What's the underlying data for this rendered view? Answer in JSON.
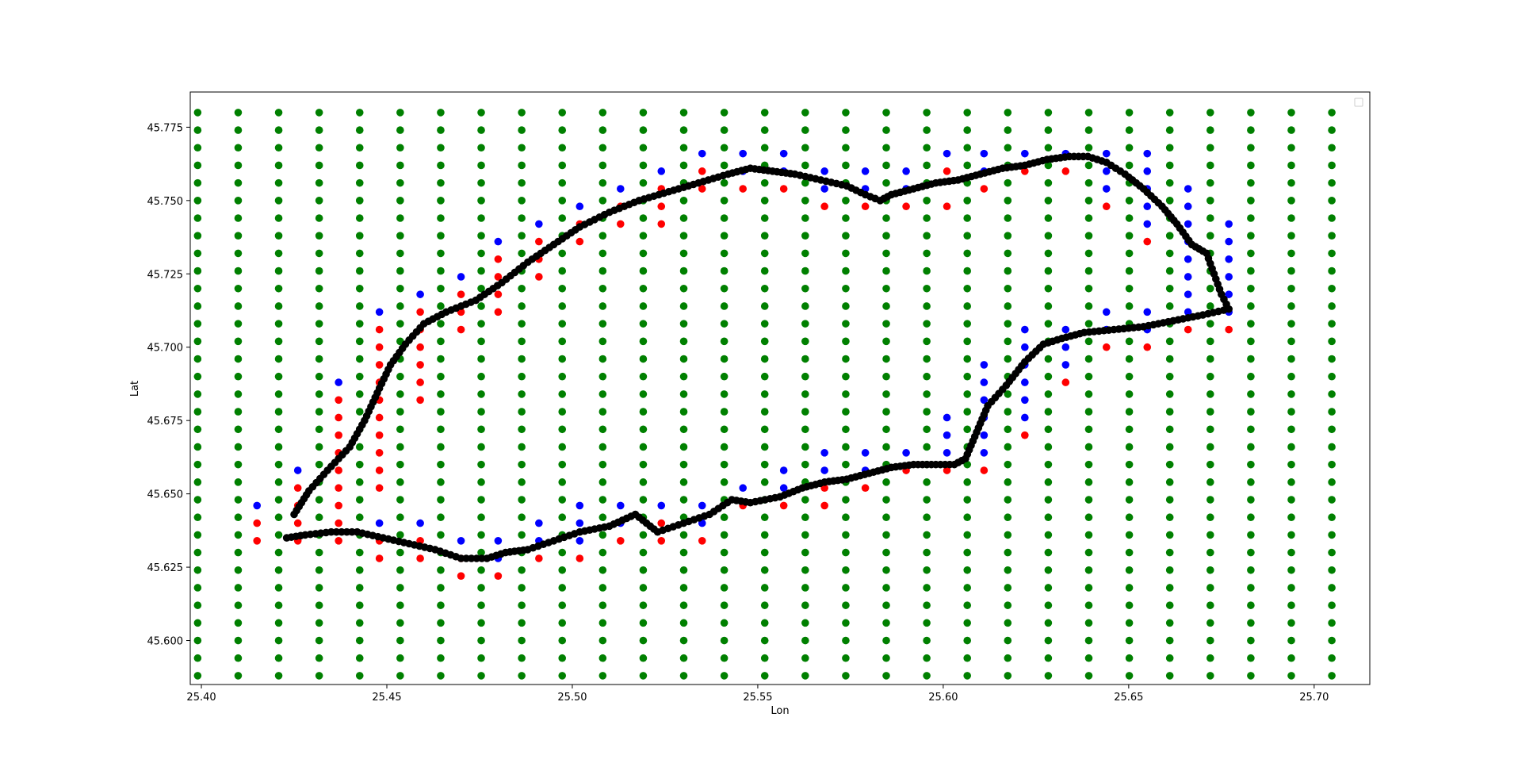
{
  "chart_data": {
    "type": "scatter",
    "title": "",
    "xlabel": "Lon",
    "ylabel": "Lat",
    "xlim": [
      25.397,
      25.715
    ],
    "ylim": [
      45.585,
      45.787
    ],
    "x_ticks": [
      25.4,
      25.45,
      25.5,
      25.55,
      25.6,
      25.65,
      25.7
    ],
    "x_tick_labels": [
      "25.40",
      "25.45",
      "25.50",
      "25.55",
      "25.60",
      "25.65",
      "25.70"
    ],
    "y_ticks": [
      45.6,
      45.625,
      45.65,
      45.675,
      45.7,
      45.725,
      45.75,
      45.775
    ],
    "y_tick_labels": [
      "45.600",
      "45.625",
      "45.650",
      "45.675",
      "45.700",
      "45.725",
      "45.750",
      "45.775"
    ],
    "grid": false,
    "legend": {
      "placement": "top-right",
      "entries": []
    },
    "colors": {
      "grid_points": "#008000",
      "inside_red": "#ff0000",
      "boundary_blue": "#0000ff",
      "track": "#000000"
    },
    "series": [
      {
        "color": "#008000",
        "grid": {
          "x_start": 25.399,
          "x_step": 0.01092,
          "x_count": 29,
          "y_start": 45.588,
          "y_step": 0.006,
          "y_count": 33
        }
      },
      {
        "color": "#ff0000",
        "points": [
          [
            25.415,
            45.64
          ],
          [
            25.415,
            45.634
          ],
          [
            25.426,
            45.652
          ],
          [
            25.426,
            45.646
          ],
          [
            25.426,
            45.64
          ],
          [
            25.426,
            45.634
          ],
          [
            25.437,
            45.682
          ],
          [
            25.437,
            45.676
          ],
          [
            25.437,
            45.67
          ],
          [
            25.437,
            45.664
          ],
          [
            25.437,
            45.658
          ],
          [
            25.437,
            45.652
          ],
          [
            25.437,
            45.646
          ],
          [
            25.437,
            45.64
          ],
          [
            25.437,
            45.634
          ],
          [
            25.448,
            45.706
          ],
          [
            25.448,
            45.7
          ],
          [
            25.448,
            45.694
          ],
          [
            25.448,
            45.688
          ],
          [
            25.448,
            45.682
          ],
          [
            25.448,
            45.676
          ],
          [
            25.448,
            45.67
          ],
          [
            25.448,
            45.664
          ],
          [
            25.448,
            45.658
          ],
          [
            25.448,
            45.652
          ],
          [
            25.448,
            45.634
          ],
          [
            25.448,
            45.628
          ],
          [
            25.459,
            45.712
          ],
          [
            25.459,
            45.706
          ],
          [
            25.459,
            45.7
          ],
          [
            25.459,
            45.694
          ],
          [
            25.459,
            45.688
          ],
          [
            25.459,
            45.682
          ],
          [
            25.459,
            45.634
          ],
          [
            25.459,
            45.628
          ],
          [
            25.47,
            45.718
          ],
          [
            25.47,
            45.712
          ],
          [
            25.47,
            45.706
          ],
          [
            25.47,
            45.628
          ],
          [
            25.47,
            45.622
          ],
          [
            25.48,
            45.73
          ],
          [
            25.48,
            45.724
          ],
          [
            25.48,
            45.718
          ],
          [
            25.48,
            45.712
          ],
          [
            25.48,
            45.622
          ],
          [
            25.491,
            45.736
          ],
          [
            25.491,
            45.73
          ],
          [
            25.491,
            45.724
          ],
          [
            25.491,
            45.628
          ],
          [
            25.502,
            45.742
          ],
          [
            25.502,
            45.736
          ],
          [
            25.502,
            45.628
          ],
          [
            25.513,
            45.748
          ],
          [
            25.513,
            45.742
          ],
          [
            25.513,
            45.634
          ],
          [
            25.524,
            45.754
          ],
          [
            25.524,
            45.748
          ],
          [
            25.524,
            45.742
          ],
          [
            25.524,
            45.64
          ],
          [
            25.524,
            45.634
          ],
          [
            25.535,
            45.76
          ],
          [
            25.535,
            45.754
          ],
          [
            25.535,
            45.634
          ],
          [
            25.546,
            45.754
          ],
          [
            25.546,
            45.646
          ],
          [
            25.557,
            45.754
          ],
          [
            25.557,
            45.646
          ],
          [
            25.568,
            45.748
          ],
          [
            25.568,
            45.652
          ],
          [
            25.568,
            45.646
          ],
          [
            25.579,
            45.748
          ],
          [
            25.579,
            45.652
          ],
          [
            25.59,
            45.748
          ],
          [
            25.59,
            45.658
          ],
          [
            25.601,
            45.76
          ],
          [
            25.601,
            45.748
          ],
          [
            25.601,
            45.658
          ],
          [
            25.611,
            45.754
          ],
          [
            25.611,
            45.658
          ],
          [
            25.622,
            45.76
          ],
          [
            25.622,
            45.67
          ],
          [
            25.633,
            45.76
          ],
          [
            25.633,
            45.688
          ],
          [
            25.644,
            45.748
          ],
          [
            25.644,
            45.7
          ],
          [
            25.655,
            45.736
          ],
          [
            25.655,
            45.7
          ],
          [
            25.666,
            45.706
          ],
          [
            25.677,
            45.706
          ]
        ]
      },
      {
        "color": "#0000ff",
        "points": [
          [
            25.415,
            45.646
          ],
          [
            25.426,
            45.658
          ],
          [
            25.437,
            45.688
          ],
          [
            25.448,
            45.712
          ],
          [
            25.448,
            45.64
          ],
          [
            25.459,
            45.718
          ],
          [
            25.459,
            45.64
          ],
          [
            25.47,
            45.724
          ],
          [
            25.47,
            45.634
          ],
          [
            25.48,
            45.736
          ],
          [
            25.48,
            45.634
          ],
          [
            25.48,
            45.628
          ],
          [
            25.491,
            45.742
          ],
          [
            25.491,
            45.64
          ],
          [
            25.491,
            45.634
          ],
          [
            25.502,
            45.748
          ],
          [
            25.502,
            45.646
          ],
          [
            25.502,
            45.64
          ],
          [
            25.502,
            45.634
          ],
          [
            25.513,
            45.754
          ],
          [
            25.513,
            45.646
          ],
          [
            25.513,
            45.64
          ],
          [
            25.524,
            45.76
          ],
          [
            25.524,
            45.646
          ],
          [
            25.535,
            45.766
          ],
          [
            25.535,
            45.646
          ],
          [
            25.535,
            45.64
          ],
          [
            25.546,
            45.766
          ],
          [
            25.546,
            45.76
          ],
          [
            25.546,
            45.652
          ],
          [
            25.557,
            45.766
          ],
          [
            25.557,
            45.76
          ],
          [
            25.557,
            45.658
          ],
          [
            25.557,
            45.652
          ],
          [
            25.568,
            45.76
          ],
          [
            25.568,
            45.754
          ],
          [
            25.568,
            45.664
          ],
          [
            25.568,
            45.658
          ],
          [
            25.579,
            45.76
          ],
          [
            25.579,
            45.754
          ],
          [
            25.579,
            45.664
          ],
          [
            25.579,
            45.658
          ],
          [
            25.59,
            45.76
          ],
          [
            25.59,
            45.754
          ],
          [
            25.59,
            45.664
          ],
          [
            25.601,
            45.766
          ],
          [
            25.601,
            45.676
          ],
          [
            25.601,
            45.67
          ],
          [
            25.601,
            45.664
          ],
          [
            25.611,
            45.766
          ],
          [
            25.611,
            45.76
          ],
          [
            25.611,
            45.694
          ],
          [
            25.611,
            45.688
          ],
          [
            25.611,
            45.682
          ],
          [
            25.611,
            45.676
          ],
          [
            25.611,
            45.67
          ],
          [
            25.611,
            45.664
          ],
          [
            25.622,
            45.766
          ],
          [
            25.622,
            45.706
          ],
          [
            25.622,
            45.7
          ],
          [
            25.622,
            45.694
          ],
          [
            25.622,
            45.688
          ],
          [
            25.622,
            45.682
          ],
          [
            25.622,
            45.676
          ],
          [
            25.633,
            45.766
          ],
          [
            25.633,
            45.706
          ],
          [
            25.633,
            45.7
          ],
          [
            25.633,
            45.694
          ],
          [
            25.644,
            45.766
          ],
          [
            25.644,
            45.76
          ],
          [
            25.644,
            45.754
          ],
          [
            25.644,
            45.712
          ],
          [
            25.644,
            45.706
          ],
          [
            25.655,
            45.766
          ],
          [
            25.655,
            45.76
          ],
          [
            25.655,
            45.754
          ],
          [
            25.655,
            45.748
          ],
          [
            25.655,
            45.742
          ],
          [
            25.655,
            45.712
          ],
          [
            25.655,
            45.706
          ],
          [
            25.666,
            45.754
          ],
          [
            25.666,
            45.748
          ],
          [
            25.666,
            45.742
          ],
          [
            25.666,
            45.736
          ],
          [
            25.666,
            45.73
          ],
          [
            25.666,
            45.724
          ],
          [
            25.666,
            45.718
          ],
          [
            25.666,
            45.712
          ],
          [
            25.677,
            45.742
          ],
          [
            25.677,
            45.736
          ],
          [
            25.677,
            45.73
          ],
          [
            25.677,
            45.724
          ],
          [
            25.677,
            45.718
          ],
          [
            25.677,
            45.712
          ]
        ]
      },
      {
        "color": "#000000",
        "path": [
          [
            25.425,
            45.643
          ],
          [
            25.429,
            45.651
          ],
          [
            25.434,
            45.658
          ],
          [
            25.44,
            45.666
          ],
          [
            25.444,
            45.675
          ],
          [
            25.448,
            45.686
          ],
          [
            25.451,
            45.694
          ],
          [
            25.455,
            45.701
          ],
          [
            25.46,
            45.708
          ],
          [
            25.466,
            45.712
          ],
          [
            25.474,
            45.716
          ],
          [
            25.481,
            45.722
          ],
          [
            25.488,
            45.729
          ],
          [
            25.495,
            45.735
          ],
          [
            25.502,
            45.741
          ],
          [
            25.51,
            45.746
          ],
          [
            25.518,
            45.75
          ],
          [
            25.526,
            45.753
          ],
          [
            25.534,
            45.756
          ],
          [
            25.542,
            45.759
          ],
          [
            25.548,
            45.761
          ],
          [
            25.554,
            45.76
          ],
          [
            25.56,
            45.759
          ],
          [
            25.567,
            45.757
          ],
          [
            25.574,
            45.755
          ],
          [
            25.579,
            45.752
          ],
          [
            25.583,
            45.75
          ],
          [
            25.586,
            45.752
          ],
          [
            25.592,
            45.754
          ],
          [
            25.598,
            45.756
          ],
          [
            25.604,
            45.757
          ],
          [
            25.61,
            45.759
          ],
          [
            25.616,
            45.761
          ],
          [
            25.622,
            45.762
          ],
          [
            25.628,
            45.764
          ],
          [
            25.634,
            45.765
          ],
          [
            25.639,
            45.765
          ],
          [
            25.644,
            45.763
          ],
          [
            25.649,
            45.759
          ],
          [
            25.654,
            45.754
          ],
          [
            25.659,
            45.748
          ],
          [
            25.663,
            45.742
          ],
          [
            25.667,
            45.735
          ],
          [
            25.671,
            45.732
          ],
          [
            25.673,
            45.725
          ],
          [
            25.675,
            45.718
          ],
          [
            25.677,
            45.713
          ],
          [
            25.67,
            45.711
          ],
          [
            25.662,
            45.709
          ],
          [
            25.654,
            45.707
          ],
          [
            25.646,
            45.706
          ],
          [
            25.638,
            45.705
          ],
          [
            25.632,
            45.703
          ],
          [
            25.627,
            45.701
          ],
          [
            25.622,
            45.695
          ],
          [
            25.617,
            45.687
          ],
          [
            25.612,
            45.68
          ],
          [
            25.609,
            45.671
          ],
          [
            25.606,
            45.662
          ],
          [
            25.603,
            45.66
          ],
          [
            25.598,
            45.66
          ],
          [
            25.592,
            45.66
          ],
          [
            25.586,
            45.659
          ],
          [
            25.58,
            45.657
          ],
          [
            25.574,
            45.655
          ],
          [
            25.568,
            45.654
          ],
          [
            25.562,
            45.652
          ],
          [
            25.556,
            45.649
          ],
          [
            25.548,
            45.647
          ],
          [
            25.543,
            45.648
          ],
          [
            25.537,
            45.643
          ],
          [
            25.53,
            45.64
          ],
          [
            25.523,
            45.637
          ],
          [
            25.517,
            45.643
          ],
          [
            25.51,
            45.639
          ],
          [
            25.502,
            45.637
          ],
          [
            25.495,
            45.634
          ],
          [
            25.488,
            45.631
          ],
          [
            25.482,
            45.63
          ],
          [
            25.477,
            45.628
          ],
          [
            25.47,
            45.628
          ],
          [
            25.463,
            45.631
          ],
          [
            25.456,
            45.633
          ],
          [
            25.449,
            45.635
          ],
          [
            25.442,
            45.637
          ],
          [
            25.435,
            45.637
          ],
          [
            25.428,
            45.636
          ],
          [
            25.423,
            45.635
          ]
        ]
      }
    ]
  }
}
